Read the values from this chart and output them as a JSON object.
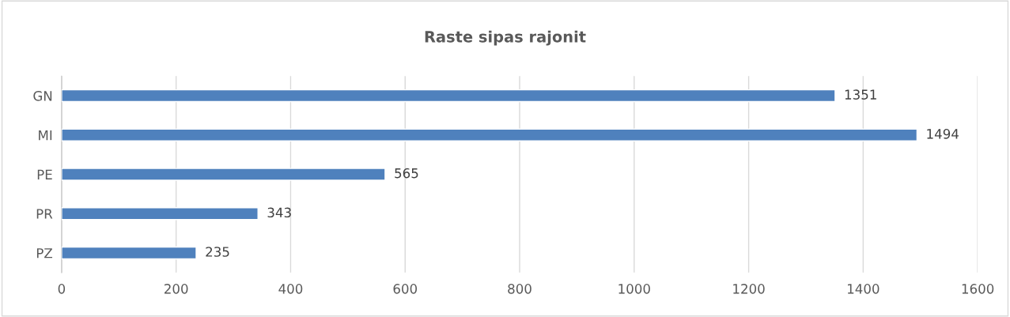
{
  "chart_data": {
    "type": "bar",
    "orientation": "horizontal",
    "title": "Raste sipas rajonit",
    "categories": [
      "GN",
      "MI",
      "PE",
      "PR",
      "PZ"
    ],
    "values": [
      1351,
      1494,
      565,
      343,
      235
    ],
    "color": "#4f81bd",
    "xlim": [
      0,
      1600
    ],
    "xticks": [
      0,
      200,
      400,
      600,
      800,
      1000,
      1200,
      1400,
      1600
    ],
    "grid": "x",
    "data_labels": true
  }
}
